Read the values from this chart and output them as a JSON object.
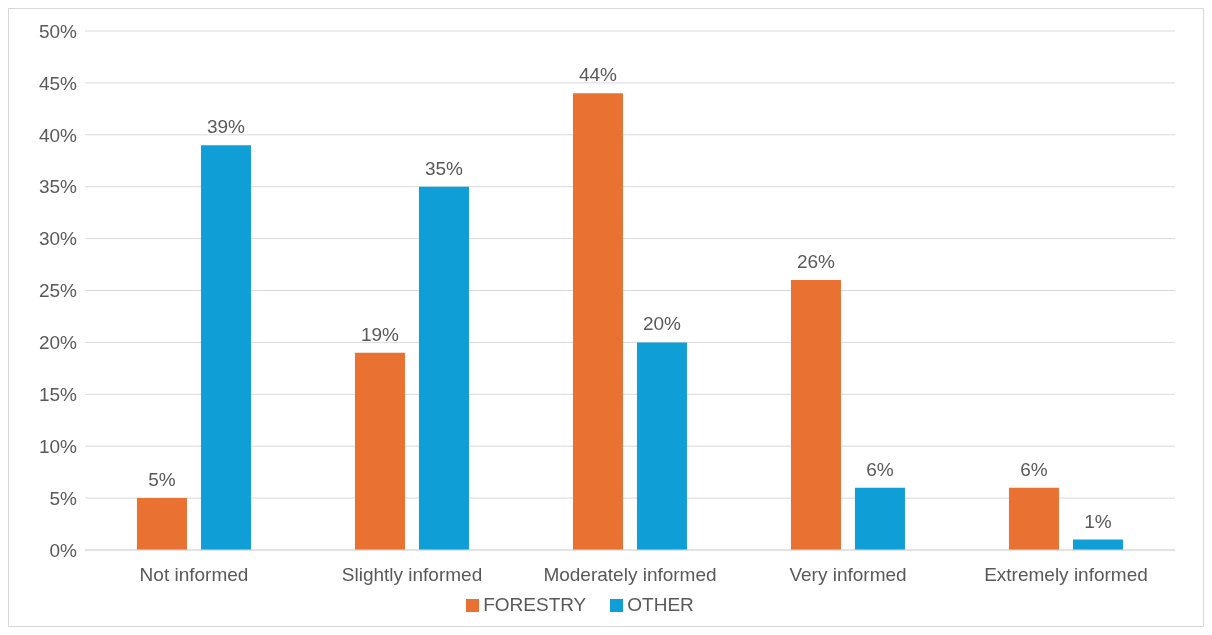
{
  "chart_data": {
    "type": "bar",
    "categories": [
      "Not informed",
      "Slightly informed",
      "Moderately informed",
      "Very informed",
      "Extremely informed"
    ],
    "series": [
      {
        "name": "FORESTRY",
        "color": "#e97132",
        "values": [
          5,
          19,
          44,
          26,
          6
        ],
        "value_labels": [
          "5%",
          "19%",
          "44%",
          "26%",
          "6%"
        ]
      },
      {
        "name": "OTHER",
        "color": "#0f9ed5",
        "values": [
          39,
          35,
          20,
          6,
          1
        ],
        "value_labels": [
          "39%",
          "35%",
          "20%",
          "6%",
          "1%"
        ]
      }
    ],
    "ylim": [
      0,
      50
    ],
    "yticks": [
      {
        "value": 0,
        "label": "0%"
      },
      {
        "value": 5,
        "label": "5%"
      },
      {
        "value": 10,
        "label": "10%"
      },
      {
        "value": 15,
        "label": "15%"
      },
      {
        "value": 20,
        "label": "20%"
      },
      {
        "value": 25,
        "label": "25%"
      },
      {
        "value": 30,
        "label": "30%"
      },
      {
        "value": 35,
        "label": "35%"
      },
      {
        "value": 40,
        "label": "40%"
      },
      {
        "value": 45,
        "label": "45%"
      },
      {
        "value": 50,
        "label": "50%"
      }
    ],
    "grid": "y",
    "legend": "bottom"
  }
}
